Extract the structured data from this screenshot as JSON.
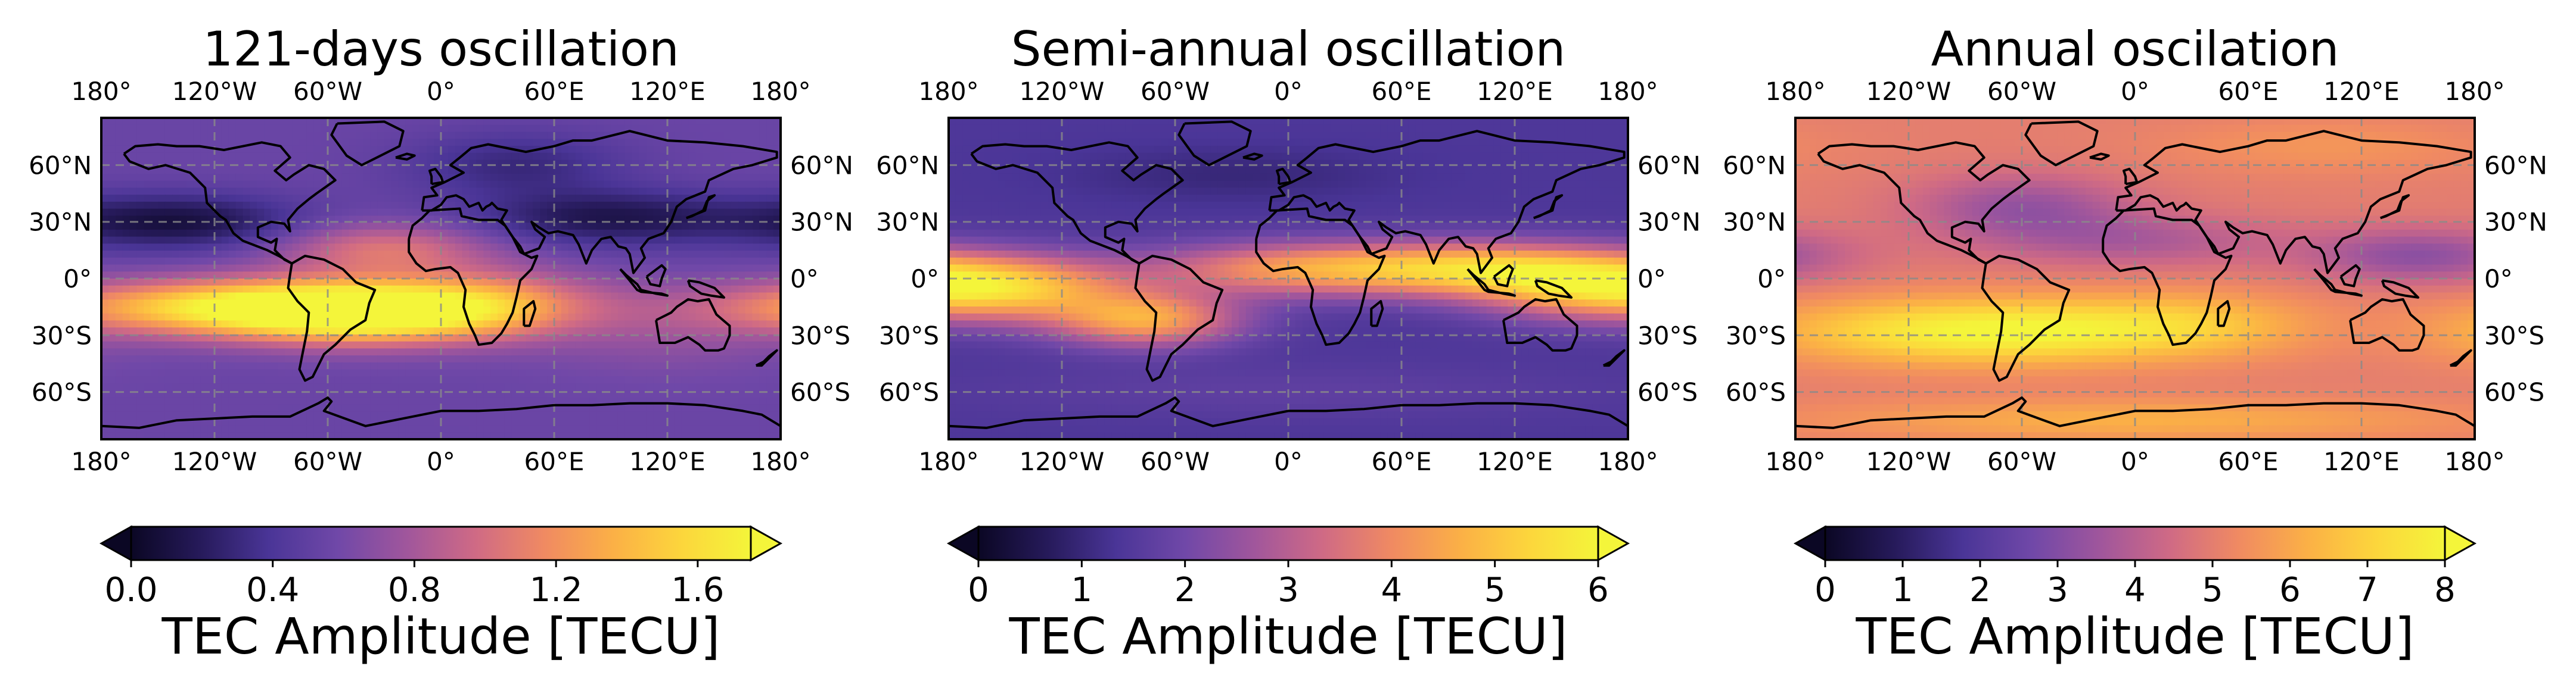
{
  "figure": {
    "colormap": "plasma-like",
    "colormap_stops": [
      "#0b0724",
      "#261a5a",
      "#4a3597",
      "#7048a8",
      "#a0569c",
      "#cf6a85",
      "#f08a62",
      "#fbb046",
      "#fcd63c",
      "#f4f53a"
    ],
    "gridline_color": "#8a8a8a",
    "coast_color": "#000000"
  },
  "chart_data": [
    {
      "type": "heatmap",
      "title": "121-days oscillation",
      "xlabel": "",
      "ylabel": "",
      "lon_ticks": [
        "180°",
        "120°W",
        "60°W",
        "0°",
        "60°E",
        "120°E",
        "180°"
      ],
      "lon_values": [
        -180,
        -120,
        -60,
        0,
        60,
        120,
        180
      ],
      "lat_ticks": [
        "60°N",
        "30°N",
        "0°",
        "30°S",
        "60°S"
      ],
      "lat_values": [
        60,
        30,
        0,
        -30,
        -60
      ],
      "xlim": [
        -180,
        180
      ],
      "ylim": [
        -85,
        85
      ],
      "colorbar": {
        "label": "TEC Amplitude [TECU]",
        "ticks": [
          "0.0",
          "0.4",
          "0.8",
          "1.2",
          "1.6"
        ],
        "tick_values": [
          0.0,
          0.4,
          0.8,
          1.2,
          1.6
        ],
        "range": [
          0.0,
          1.75
        ],
        "extend": "both"
      },
      "field": {
        "base": 0.55,
        "components": [
          {
            "lon": -40,
            "lat": -18,
            "amp": 1.25,
            "slon": 55,
            "slat": 11
          },
          {
            "lon": -115,
            "lat": -15,
            "amp": 0.9,
            "slon": 70,
            "slat": 10
          },
          {
            "lon": 30,
            "lat": -12,
            "amp": 0.45,
            "slon": 40,
            "slat": 12
          },
          {
            "lon": -30,
            "lat": 15,
            "amp": 0.5,
            "slon": 40,
            "slat": 10
          },
          {
            "lon": -140,
            "lat": 30,
            "amp": -0.45,
            "slon": 45,
            "slat": 10
          },
          {
            "lon": 90,
            "lat": 32,
            "amp": -0.4,
            "slon": 50,
            "slat": 10
          },
          {
            "lon": 40,
            "lat": 60,
            "amp": -0.25,
            "slon": 40,
            "slat": 12
          },
          {
            "lon": 120,
            "lat": -30,
            "amp": 0.15,
            "slon": 50,
            "slat": 15
          }
        ]
      }
    },
    {
      "type": "heatmap",
      "title": "Semi-annual oscillation",
      "xlabel": "",
      "ylabel": "",
      "lon_ticks": [
        "180°",
        "120°W",
        "60°W",
        "0°",
        "60°E",
        "120°E",
        "180°"
      ],
      "lon_values": [
        -180,
        -120,
        -60,
        0,
        60,
        120,
        180
      ],
      "lat_ticks": [
        "60°N",
        "30°N",
        "0°",
        "30°S",
        "60°S"
      ],
      "lat_values": [
        60,
        30,
        0,
        -30,
        -60
      ],
      "xlim": [
        -180,
        180
      ],
      "ylim": [
        -85,
        85
      ],
      "colorbar": {
        "label": "TEC Amplitude [TECU]",
        "ticks": [
          "0",
          "1",
          "2",
          "3",
          "4",
          "5",
          "6"
        ],
        "tick_values": [
          0,
          1,
          2,
          3,
          4,
          5,
          6
        ],
        "range": [
          0,
          6
        ],
        "extend": "both"
      },
      "field": {
        "base": 1.4,
        "components": [
          {
            "lon": -150,
            "lat": -5,
            "amp": 3.4,
            "slon": 45,
            "slat": 12
          },
          {
            "lon": -75,
            "lat": -22,
            "amp": 3.0,
            "slon": 35,
            "slat": 10
          },
          {
            "lon": 0,
            "lat": 5,
            "amp": 2.5,
            "slon": 55,
            "slat": 10
          },
          {
            "lon": 100,
            "lat": 5,
            "amp": 3.2,
            "slon": 55,
            "slat": 10
          },
          {
            "lon": 150,
            "lat": -5,
            "amp": 2.0,
            "slon": 40,
            "slat": 12
          },
          {
            "lon": -30,
            "lat": 55,
            "amp": -0.4,
            "slon": 60,
            "slat": 10
          },
          {
            "lon": 0,
            "lat": -60,
            "amp": 0.3,
            "slon": 120,
            "slat": 10
          }
        ]
      }
    },
    {
      "type": "heatmap",
      "title": "Annual oscilation",
      "xlabel": "",
      "ylabel": "",
      "lon_ticks": [
        "180°",
        "120°W",
        "60°W",
        "0°",
        "60°E",
        "120°E",
        "180°"
      ],
      "lon_values": [
        -180,
        -120,
        -60,
        0,
        60,
        120,
        180
      ],
      "lat_ticks": [
        "60°N",
        "30°N",
        "0°",
        "30°S",
        "60°S"
      ],
      "lat_values": [
        60,
        30,
        0,
        -30,
        -60
      ],
      "xlim": [
        -180,
        180
      ],
      "ylim": [
        -85,
        85
      ],
      "colorbar": {
        "label": "TEC Amplitude [TECU]",
        "ticks": [
          "0",
          "1",
          "2",
          "3",
          "4",
          "5",
          "6",
          "7",
          "8"
        ],
        "tick_values": [
          0,
          1,
          2,
          3,
          4,
          5,
          6,
          7,
          8
        ],
        "range": [
          0,
          8
        ],
        "extend": "both"
      },
      "field": {
        "base": 5.0,
        "components": [
          {
            "lon": -60,
            "lat": -28,
            "amp": 2.6,
            "slon": 55,
            "slat": 12
          },
          {
            "lon": -140,
            "lat": -28,
            "amp": 1.3,
            "slon": 50,
            "slat": 12
          },
          {
            "lon": 30,
            "lat": -25,
            "amp": 1.6,
            "slon": 45,
            "slat": 12
          },
          {
            "lon": -60,
            "lat": 38,
            "amp": -1.6,
            "slon": 40,
            "slat": 12
          },
          {
            "lon": 0,
            "lat": 20,
            "amp": -1.2,
            "slon": 55,
            "slat": 10
          },
          {
            "lon": 150,
            "lat": 12,
            "amp": -1.8,
            "slon": 40,
            "slat": 10
          },
          {
            "lon": 100,
            "lat": 70,
            "amp": 0.6,
            "slon": 60,
            "slat": 10
          },
          {
            "lon": 0,
            "lat": -75,
            "amp": 1.2,
            "slon": 120,
            "slat": 8
          }
        ]
      }
    }
  ]
}
